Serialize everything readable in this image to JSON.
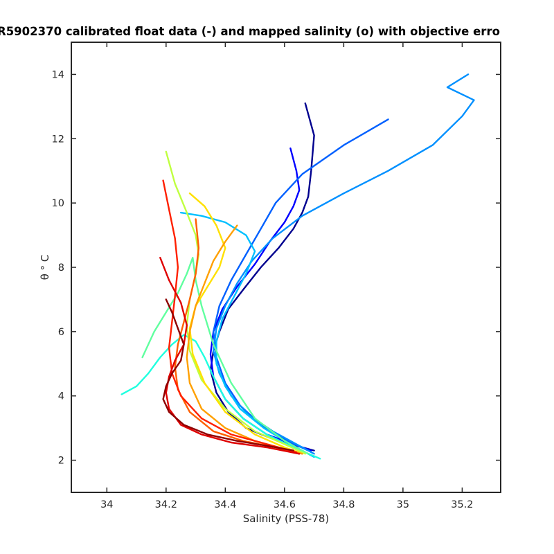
{
  "chart_data": {
    "type": "line",
    "title": "R5902370 calibrated float data (-) and mapped salinity (o) with objective erro",
    "xlabel": "Salinity (PSS-78)",
    "ylabel": "θ ° C",
    "xlim": [
      33.88,
      35.33
    ],
    "ylim": [
      1,
      15
    ],
    "x_ticks": [
      34,
      34.2,
      34.4,
      34.6,
      34.8,
      35,
      35.2
    ],
    "x_tick_labels": [
      "34",
      "34.2",
      "34.4",
      "34.6",
      "34.8",
      "35",
      "35.2"
    ],
    "y_ticks": [
      2,
      4,
      6,
      8,
      10,
      12,
      14
    ],
    "y_tick_labels": [
      "2",
      "4",
      "6",
      "8",
      "10",
      "12",
      "14"
    ],
    "grid": false,
    "colormap": "jet",
    "colormap_note": "profile color runs from dark blue (first profiles) to dark red (last profiles)",
    "series": [
      {
        "color": "#00008f",
        "x": [
          34.67,
          34.7,
          34.69,
          34.68,
          34.66,
          34.63,
          34.58,
          34.52,
          34.46,
          34.41,
          34.38,
          34.36,
          34.35,
          34.37,
          34.41,
          34.47,
          34.55,
          34.64,
          34.7
        ],
        "y": [
          13.1,
          12.1,
          11.0,
          10.2,
          9.7,
          9.2,
          8.6,
          8.0,
          7.3,
          6.7,
          6.0,
          5.4,
          4.8,
          4.1,
          3.5,
          3.0,
          2.7,
          2.45,
          2.3
        ]
      },
      {
        "color": "#0000ff",
        "x": [
          34.62,
          34.64,
          34.65,
          34.63,
          34.6,
          34.55,
          34.5,
          34.44,
          34.39,
          34.36,
          34.35,
          34.36,
          34.4,
          34.46,
          34.54,
          34.63,
          34.69
        ],
        "y": [
          11.7,
          11.0,
          10.4,
          9.9,
          9.4,
          8.8,
          8.1,
          7.4,
          6.7,
          6.0,
          5.3,
          4.6,
          3.9,
          3.3,
          2.8,
          2.5,
          2.3
        ]
      },
      {
        "color": "#0060ff",
        "x": [
          34.95,
          34.8,
          34.66,
          34.57,
          34.52,
          34.47,
          34.42,
          34.38,
          34.36,
          34.37,
          34.4,
          34.45,
          34.52,
          34.61,
          34.68
        ],
        "y": [
          12.6,
          11.8,
          10.9,
          10.0,
          9.2,
          8.4,
          7.6,
          6.8,
          6.0,
          5.2,
          4.4,
          3.7,
          3.1,
          2.6,
          2.3
        ]
      },
      {
        "color": "#0090ff",
        "x": [
          35.22,
          35.15,
          35.24,
          35.2,
          35.1,
          34.95,
          34.8,
          34.66,
          34.56,
          34.49,
          34.44,
          34.4,
          34.37,
          34.36,
          34.38,
          34.42,
          34.48,
          34.56,
          34.64,
          34.7
        ],
        "y": [
          14.0,
          13.6,
          13.2,
          12.7,
          11.8,
          11.0,
          10.3,
          9.6,
          8.9,
          8.2,
          7.5,
          6.8,
          6.1,
          5.4,
          4.7,
          4.0,
          3.4,
          2.9,
          2.5,
          2.2
        ]
      },
      {
        "color": "#00c0ff",
        "x": [
          34.25,
          34.32,
          34.4,
          34.47,
          34.5,
          34.47,
          34.43,
          34.39,
          34.37,
          34.37,
          34.4,
          34.45,
          34.53,
          34.62,
          34.7
        ],
        "y": [
          9.7,
          9.6,
          9.4,
          9.0,
          8.5,
          7.8,
          7.1,
          6.4,
          5.7,
          5.0,
          4.3,
          3.6,
          3.0,
          2.5,
          2.1
        ]
      },
      {
        "color": "#20ffdf",
        "x": [
          34.05,
          34.1,
          34.14,
          34.18,
          34.22,
          34.26,
          34.3,
          34.33,
          34.36,
          34.4,
          34.46,
          34.54,
          34.63,
          34.72
        ],
        "y": [
          4.05,
          4.3,
          4.7,
          5.2,
          5.6,
          5.9,
          5.7,
          5.2,
          4.6,
          3.9,
          3.3,
          2.8,
          2.4,
          2.05
        ]
      },
      {
        "color": "#60ff9f",
        "x": [
          34.12,
          34.16,
          34.2,
          34.24,
          34.27,
          34.29,
          34.3,
          34.32,
          34.36,
          34.42,
          34.5,
          34.6,
          34.68
        ],
        "y": [
          5.2,
          6.0,
          6.6,
          7.2,
          7.8,
          8.3,
          7.6,
          6.8,
          5.6,
          4.4,
          3.3,
          2.6,
          2.2
        ]
      },
      {
        "color": "#c0ff40",
        "x": [
          34.2,
          34.23,
          34.27,
          34.3,
          34.31,
          34.3,
          34.28,
          34.27,
          34.28,
          34.32,
          34.4,
          34.5,
          34.6,
          34.67
        ],
        "y": [
          11.6,
          10.6,
          9.7,
          9.0,
          8.4,
          7.8,
          7.0,
          6.2,
          5.4,
          4.5,
          3.6,
          2.9,
          2.5,
          2.2
        ]
      },
      {
        "color": "#ffe000",
        "x": [
          34.28,
          34.33,
          34.37,
          34.4,
          34.38,
          34.34,
          34.3,
          34.28,
          34.29,
          34.33,
          34.4,
          34.5,
          34.6,
          34.66
        ],
        "y": [
          10.3,
          9.9,
          9.3,
          8.6,
          8.0,
          7.4,
          6.8,
          6.1,
          5.3,
          4.4,
          3.5,
          2.8,
          2.4,
          2.2
        ]
      },
      {
        "color": "#ffa000",
        "x": [
          34.44,
          34.4,
          34.36,
          34.33,
          34.3,
          34.28,
          34.27,
          34.28,
          34.32,
          34.4,
          34.5,
          34.6,
          34.66
        ],
        "y": [
          9.3,
          8.8,
          8.2,
          7.5,
          6.8,
          6.0,
          5.2,
          4.4,
          3.6,
          3.0,
          2.6,
          2.35,
          2.2
        ]
      },
      {
        "color": "#ff6000",
        "x": [
          34.3,
          34.31,
          34.3,
          34.28,
          34.26,
          34.24,
          34.23,
          34.24,
          34.28,
          34.36,
          34.46,
          34.57,
          34.65
        ],
        "y": [
          9.5,
          8.6,
          7.8,
          7.0,
          6.3,
          5.6,
          4.9,
          4.2,
          3.5,
          2.9,
          2.6,
          2.4,
          2.2
        ]
      },
      {
        "color": "#ff2000",
        "x": [
          34.19,
          34.21,
          34.23,
          34.24,
          34.23,
          34.22,
          34.21,
          34.22,
          34.25,
          34.32,
          34.42,
          34.54,
          34.64
        ],
        "y": [
          10.7,
          9.8,
          8.9,
          8.0,
          7.1,
          6.3,
          5.5,
          4.7,
          4.0,
          3.3,
          2.8,
          2.5,
          2.25
        ]
      },
      {
        "color": "#df0000",
        "x": [
          34.18,
          34.21,
          34.25,
          34.27,
          34.26,
          34.23,
          34.21,
          34.2,
          34.21,
          34.25,
          34.32,
          34.42,
          34.54,
          34.65
        ],
        "y": [
          8.3,
          7.6,
          6.9,
          6.2,
          5.6,
          5.1,
          4.6,
          4.1,
          3.6,
          3.1,
          2.8,
          2.55,
          2.4,
          2.2
        ]
      },
      {
        "color": "#8f0000",
        "x": [
          34.2,
          34.22,
          34.24,
          34.26,
          34.25,
          34.22,
          34.2,
          34.19,
          34.21,
          34.26,
          34.34,
          34.44,
          34.54,
          34.63
        ],
        "y": [
          7.0,
          6.6,
          6.1,
          5.6,
          5.1,
          4.7,
          4.3,
          3.9,
          3.5,
          3.1,
          2.8,
          2.6,
          2.45,
          2.3
        ]
      }
    ]
  }
}
